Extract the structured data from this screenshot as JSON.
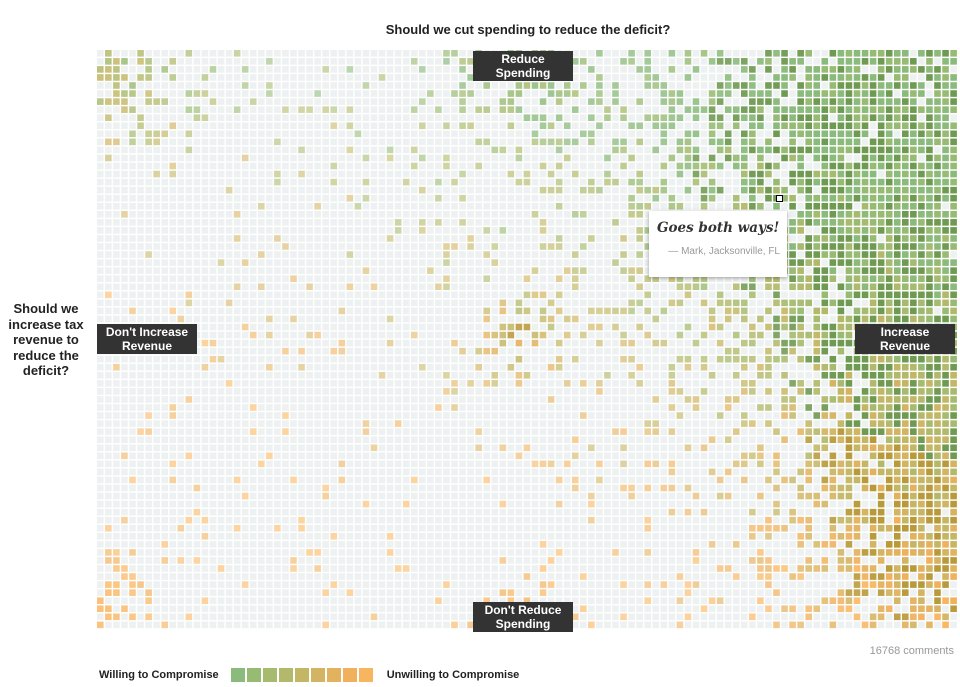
{
  "title": "Should we cut spending to reduce the deficit?",
  "left_question": "Should we increase tax revenue to reduce the deficit?",
  "labels": {
    "top": "Reduce Spending",
    "bottom": "Don't Reduce Spending",
    "left": "Don't Increase Revenue",
    "right": "Increase Revenue"
  },
  "callout": {
    "quote": "Goes both ways!",
    "attribution": "— Mark, Jacksonville, FL"
  },
  "comment_count": "16768 comments",
  "legend": {
    "left_label": "Willing to Compromise",
    "right_label": "Unwilling to Compromise",
    "colors": [
      "#8aba7c",
      "#98bb74",
      "#a6bb6f",
      "#b2b96a",
      "#c3b766",
      "#d2b462",
      "#e2b25f",
      "#f0b05c",
      "#f8b55f"
    ]
  },
  "chart_data": {
    "type": "heatmap",
    "title": "Should we cut spending to reduce the deficit?",
    "x_axis": {
      "left": "Don't Increase Revenue",
      "right": "Increase Revenue"
    },
    "y_axis": {
      "top": "Reduce Spending",
      "bottom": "Don't Reduce Spending"
    },
    "grid": {
      "columns": 107,
      "rows": 72
    },
    "density_regions": [
      {
        "area": "upper-right",
        "density": "high",
        "tone": "green"
      },
      {
        "area": "lower-right",
        "density": "high",
        "tone": "olive/orange"
      },
      {
        "area": "right edge center",
        "density": "high",
        "tone": "mixed"
      },
      {
        "area": "center",
        "density": "medium",
        "tone": "green"
      },
      {
        "area": "top center",
        "density": "medium",
        "tone": "orange"
      },
      {
        "area": "top-left corner",
        "density": "medium",
        "tone": "orange"
      },
      {
        "area": "bottom-left corner",
        "density": "medium",
        "tone": "olive"
      },
      {
        "area": "bottom center",
        "density": "medium",
        "tone": "orange"
      },
      {
        "area": "left / lower-left",
        "density": "low",
        "tone": "mixed"
      }
    ],
    "total_comments": 16768
  }
}
